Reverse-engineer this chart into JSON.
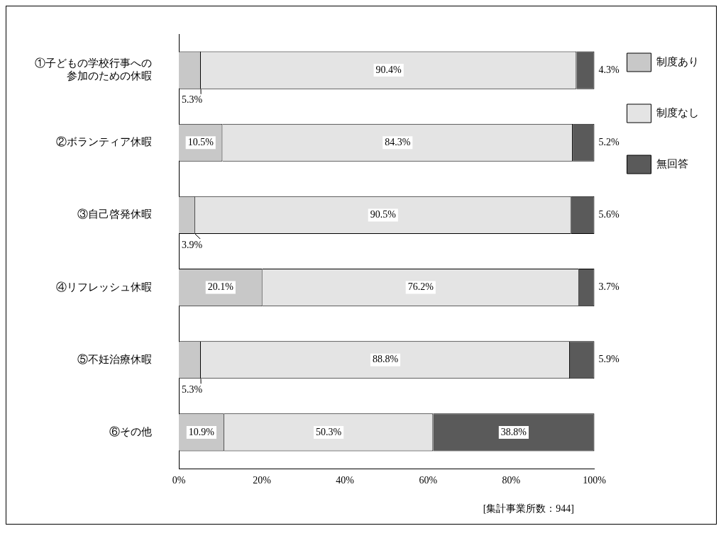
{
  "chart_data": {
    "type": "bar",
    "orientation": "horizontal",
    "stacked": true,
    "categories": [
      "①子どもの学校行事への参加のための休暇",
      "②ボランティア休暇",
      "③自己啓発休暇",
      "④リフレッシュ休暇",
      "⑤不妊治療休暇",
      "⑥その他"
    ],
    "series": [
      {
        "name": "制度あり",
        "color": "#c8c8c8",
        "values": [
          5.3,
          10.5,
          3.9,
          20.1,
          5.3,
          10.9
        ],
        "value_labels": [
          "5.3%",
          "10.5%",
          "3.9%",
          "20.1%",
          "5.3%",
          "10.9%"
        ]
      },
      {
        "name": "制度なし",
        "color": "#e4e4e4",
        "values": [
          90.4,
          84.3,
          90.5,
          76.2,
          88.8,
          50.3
        ],
        "value_labels": [
          "90.4%",
          "84.3%",
          "90.5%",
          "76.2%",
          "88.8%",
          "50.3%"
        ]
      },
      {
        "name": "無回答",
        "color": "#5a5a5a",
        "values": [
          4.3,
          5.2,
          5.6,
          3.7,
          5.9,
          38.8
        ],
        "value_labels": [
          "4.3%",
          "5.2%",
          "5.6%",
          "3.7%",
          "5.9%",
          "38.8%"
        ]
      }
    ],
    "xlim": [
      0,
      100
    ],
    "xticks": [
      {
        "value": 0,
        "label": "0%"
      },
      {
        "value": 20,
        "label": "20%"
      },
      {
        "value": 40,
        "label": "40%"
      },
      {
        "value": 60,
        "label": "60%"
      },
      {
        "value": 80,
        "label": "80%"
      },
      {
        "value": 100,
        "label": "100%"
      }
    ],
    "grid": false,
    "legend": "top right",
    "annotations": [
      "[集計事業所数：944]"
    ]
  }
}
